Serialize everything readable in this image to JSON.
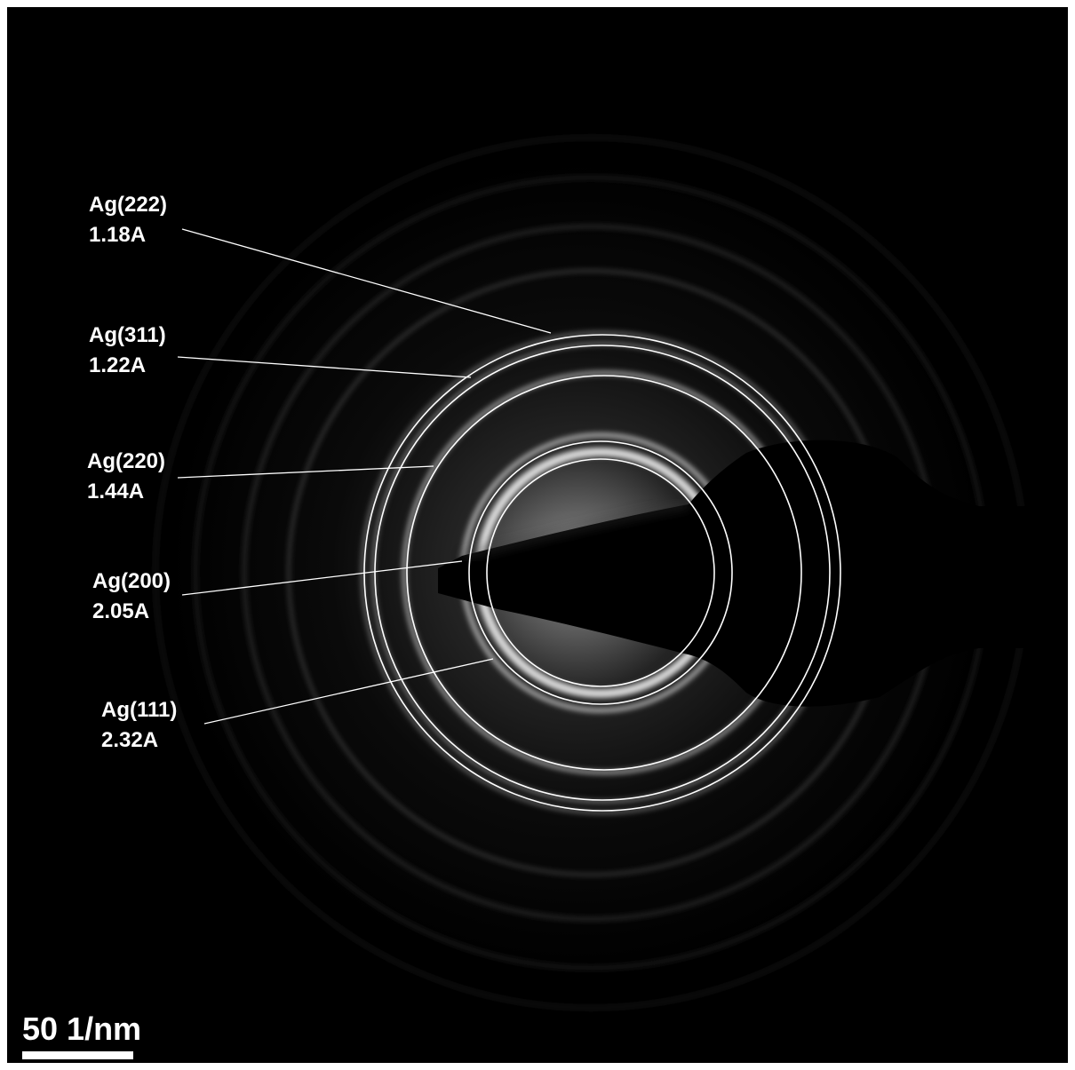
{
  "rings": [
    {
      "name": "Ag(222)",
      "spacing": "1.18A"
    },
    {
      "name": "Ag(311)",
      "spacing": "1.22A"
    },
    {
      "name": "Ag(220)",
      "spacing": "1.44A"
    },
    {
      "name": "Ag(200)",
      "spacing": "2.05A"
    },
    {
      "name": "Ag(111)",
      "spacing": "2.32A"
    }
  ],
  "scale_bar": {
    "label": "50 1/nm"
  },
  "colors": {
    "background": "#000000",
    "frame": "#ffffff",
    "ring": "#ffffff",
    "text": "#ffffff"
  }
}
